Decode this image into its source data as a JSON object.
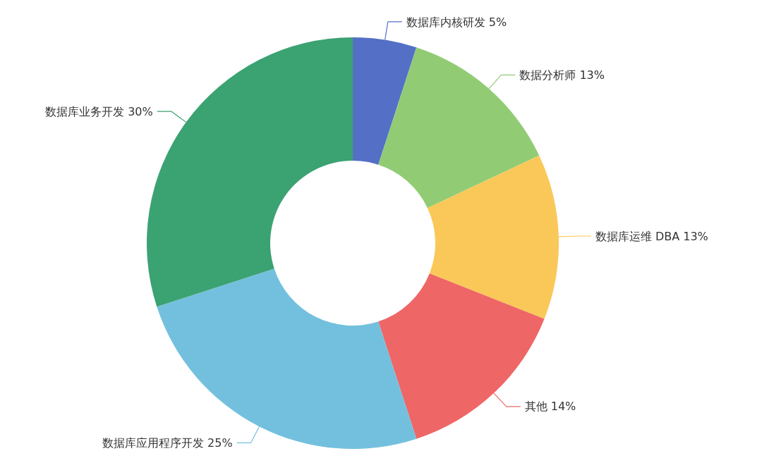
{
  "chart_data": {
    "type": "donut",
    "categories": [
      "数据库内核研发",
      "数据分析师",
      "数据库运维 DBA",
      "其他",
      "数据库应用程序开发",
      "数据库业务开发"
    ],
    "values": [
      5,
      13,
      13,
      14,
      25,
      30
    ],
    "value_labels": [
      "5%",
      "13%",
      "13%",
      "14%",
      "25%",
      "30%"
    ],
    "colors": [
      "#5470c6",
      "#91cc75",
      "#fac858",
      "#ee6666",
      "#73c0de",
      "#3ba272"
    ]
  }
}
